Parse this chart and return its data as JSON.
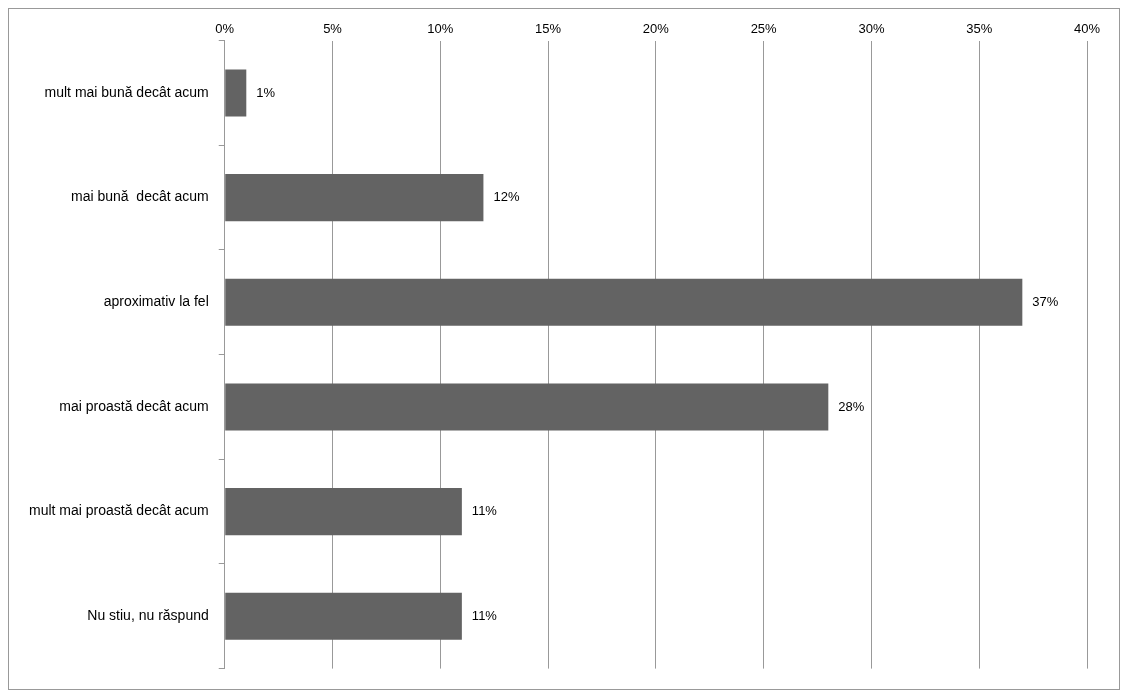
{
  "chart_data": {
    "type": "bar",
    "orientation": "horizontal",
    "categories": [
      "mult mai bună decât acum",
      "mai bună  decât acum",
      "aproximativ la fel",
      "mai proastă decât acum",
      "mult mai proastă decât acum",
      "Nu stiu, nu răspund"
    ],
    "values": [
      1,
      12,
      37,
      28,
      11,
      11
    ],
    "value_labels": [
      "1%",
      "12%",
      "37%",
      "28%",
      "11%",
      "11%"
    ],
    "color": "#636363",
    "xlim": [
      0,
      40
    ],
    "xticks": [
      {
        "value": 0,
        "label": "0%"
      },
      {
        "value": 5,
        "label": "5%"
      },
      {
        "value": 10,
        "label": "10%"
      },
      {
        "value": 15,
        "label": "15%"
      },
      {
        "value": 20,
        "label": "20%"
      },
      {
        "value": 25,
        "label": "25%"
      },
      {
        "value": 30,
        "label": "30%"
      },
      {
        "value": 35,
        "label": "35%"
      },
      {
        "value": 40,
        "label": "40%"
      }
    ],
    "grid": "x",
    "legend": false
  }
}
